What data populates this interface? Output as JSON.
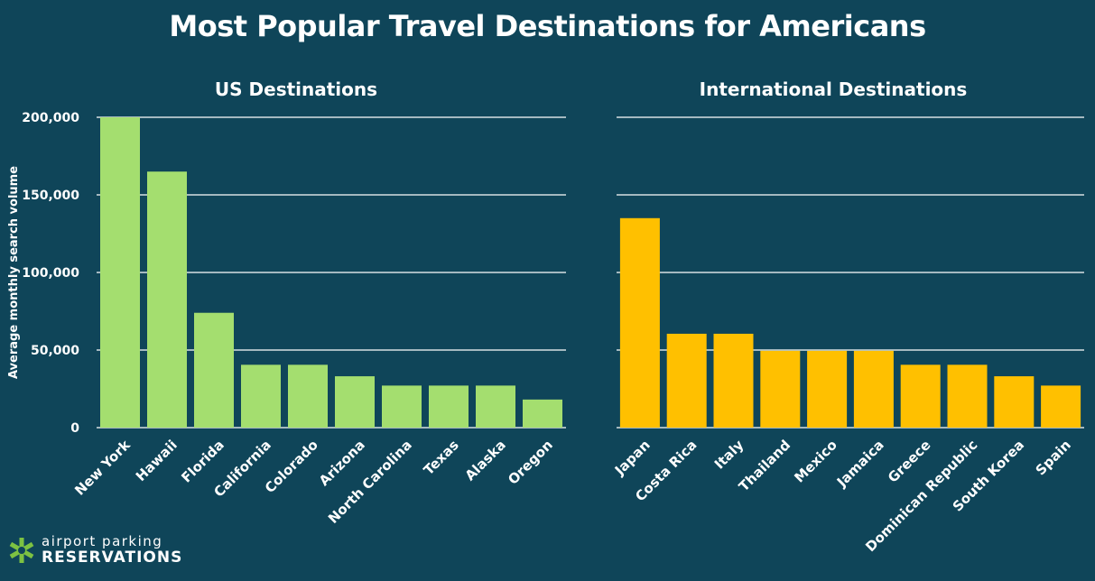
{
  "page_title": "Most Popular Travel Destinations for Americans",
  "logo": {
    "line1": "airport parking",
    "line2": "RESERVATIONS",
    "icon": "asterisk-icon",
    "icon_color": "#7dc242"
  },
  "colors": {
    "background": "#0f4559",
    "text": "#ffffff",
    "gridline": "#ffffff"
  },
  "chart_data": [
    {
      "type": "bar",
      "title": "US Destinations",
      "ylabel": "Average monthly search volume",
      "xlabel": "",
      "ylim": [
        0,
        200000
      ],
      "yticks": [
        0,
        50000,
        100000,
        150000,
        200000
      ],
      "ytick_labels": [
        "0",
        "50,000",
        "100,000",
        "150,000",
        "200,000"
      ],
      "color": "#a4de6f",
      "grid": true,
      "categories": [
        "New York",
        "Hawaii",
        "Florida",
        "California",
        "Colorado",
        "Arizona",
        "North Carolina",
        "Texas",
        "Alaska",
        "Oregon"
      ],
      "values": [
        201000,
        165000,
        74000,
        40500,
        40500,
        33100,
        27100,
        27100,
        27100,
        18100
      ]
    },
    {
      "type": "bar",
      "title": "International Destinations",
      "ylabel": "",
      "xlabel": "",
      "ylim": [
        0,
        200000
      ],
      "yticks": [
        0,
        50000,
        100000,
        150000,
        200000
      ],
      "ytick_labels": [],
      "color": "#ffc000",
      "grid": true,
      "categories": [
        "Japan",
        "Costa Rica",
        "Italy",
        "Thailand",
        "Mexico",
        "Jamaica",
        "Greece",
        "Dominican Republic",
        "South Korea",
        "Spain"
      ],
      "values": [
        135000,
        60500,
        60500,
        49500,
        49500,
        49500,
        40500,
        40500,
        33100,
        27100
      ]
    }
  ]
}
